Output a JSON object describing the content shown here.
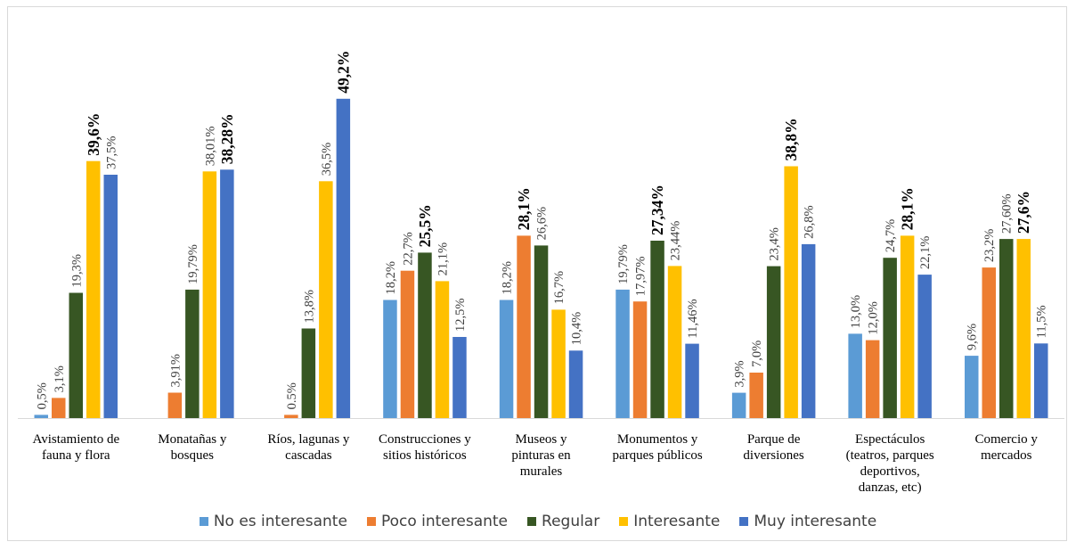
{
  "chart_data": {
    "type": "bar",
    "categories": [
      [
        "Avistamiento de",
        "fauna y flora"
      ],
      [
        "Monatañas y",
        "bosques"
      ],
      [
        "Ríos, lagunas y",
        "cascadas"
      ],
      [
        "Construcciones y",
        "sitios históricos"
      ],
      [
        "Museos y",
        "pinturas en",
        "murales"
      ],
      [
        "Monumentos y",
        "parques públicos"
      ],
      [
        "Parque de",
        "diversiones"
      ],
      [
        "Espectáculos",
        "(teatros, parques",
        "deportivos,",
        "danzas, etc)"
      ],
      [
        "Comercio y",
        "mercados"
      ]
    ],
    "ylim": [
      0,
      50
    ],
    "series": [
      {
        "name": "No es interesante",
        "color": "#5b9bd5",
        "values": [
          0.5,
          null,
          null,
          18.2,
          18.2,
          19.79,
          3.9,
          13.0,
          9.6
        ],
        "labels": [
          "0,5%",
          "",
          "",
          "18,2%",
          "18,2%",
          "19,79%",
          "3,9%",
          "13,0%",
          "9,6%"
        ]
      },
      {
        "name": "Poco interesante",
        "color": "#ed7d31",
        "values": [
          3.1,
          3.91,
          0.5,
          22.7,
          28.1,
          17.97,
          7.0,
          12.0,
          23.2
        ],
        "labels": [
          "3,1%",
          "3,91%",
          "0.5%",
          "22,7%",
          "28,1%",
          "17,97%",
          "7,0%",
          "12,0%",
          "23,2%"
        ]
      },
      {
        "name": "Regular",
        "color": "#375623",
        "values": [
          19.3,
          19.79,
          13.8,
          25.5,
          26.6,
          27.34,
          23.4,
          24.7,
          27.6
        ],
        "labels": [
          "19,3%",
          "19,79%",
          "13,8%",
          "25,5%",
          "26,6%",
          "27,34%",
          "23,4%",
          "24,7%",
          "27,60%"
        ]
      },
      {
        "name": "Interesante",
        "color": "#ffc000",
        "values": [
          39.6,
          38.01,
          36.5,
          21.1,
          16.7,
          23.44,
          38.8,
          28.1,
          27.6
        ],
        "labels": [
          "39,6%",
          "38,01%",
          "36,5%",
          "21,1%",
          "16,7%",
          "23,44%",
          "38,8%",
          "28,1%",
          "27,6%"
        ]
      },
      {
        "name": "Muy interesante",
        "color": "#4472c4",
        "values": [
          37.5,
          38.28,
          49.2,
          12.5,
          10.4,
          11.46,
          26.8,
          22.1,
          11.5
        ],
        "labels": [
          "37,5%",
          "38,28%",
          "49,2%",
          "12,5%",
          "10,4%",
          "11,46%",
          "26,8%",
          "22,1%",
          "11,5%"
        ]
      }
    ],
    "bold_labels": [
      [
        0,
        3
      ],
      [
        1,
        4
      ],
      [
        2,
        4
      ],
      [
        3,
        2
      ],
      [
        4,
        1
      ],
      [
        5,
        2
      ],
      [
        6,
        3
      ],
      [
        7,
        3
      ],
      [
        8,
        3
      ]
    ],
    "legend_position": "bottom",
    "grid": false
  }
}
